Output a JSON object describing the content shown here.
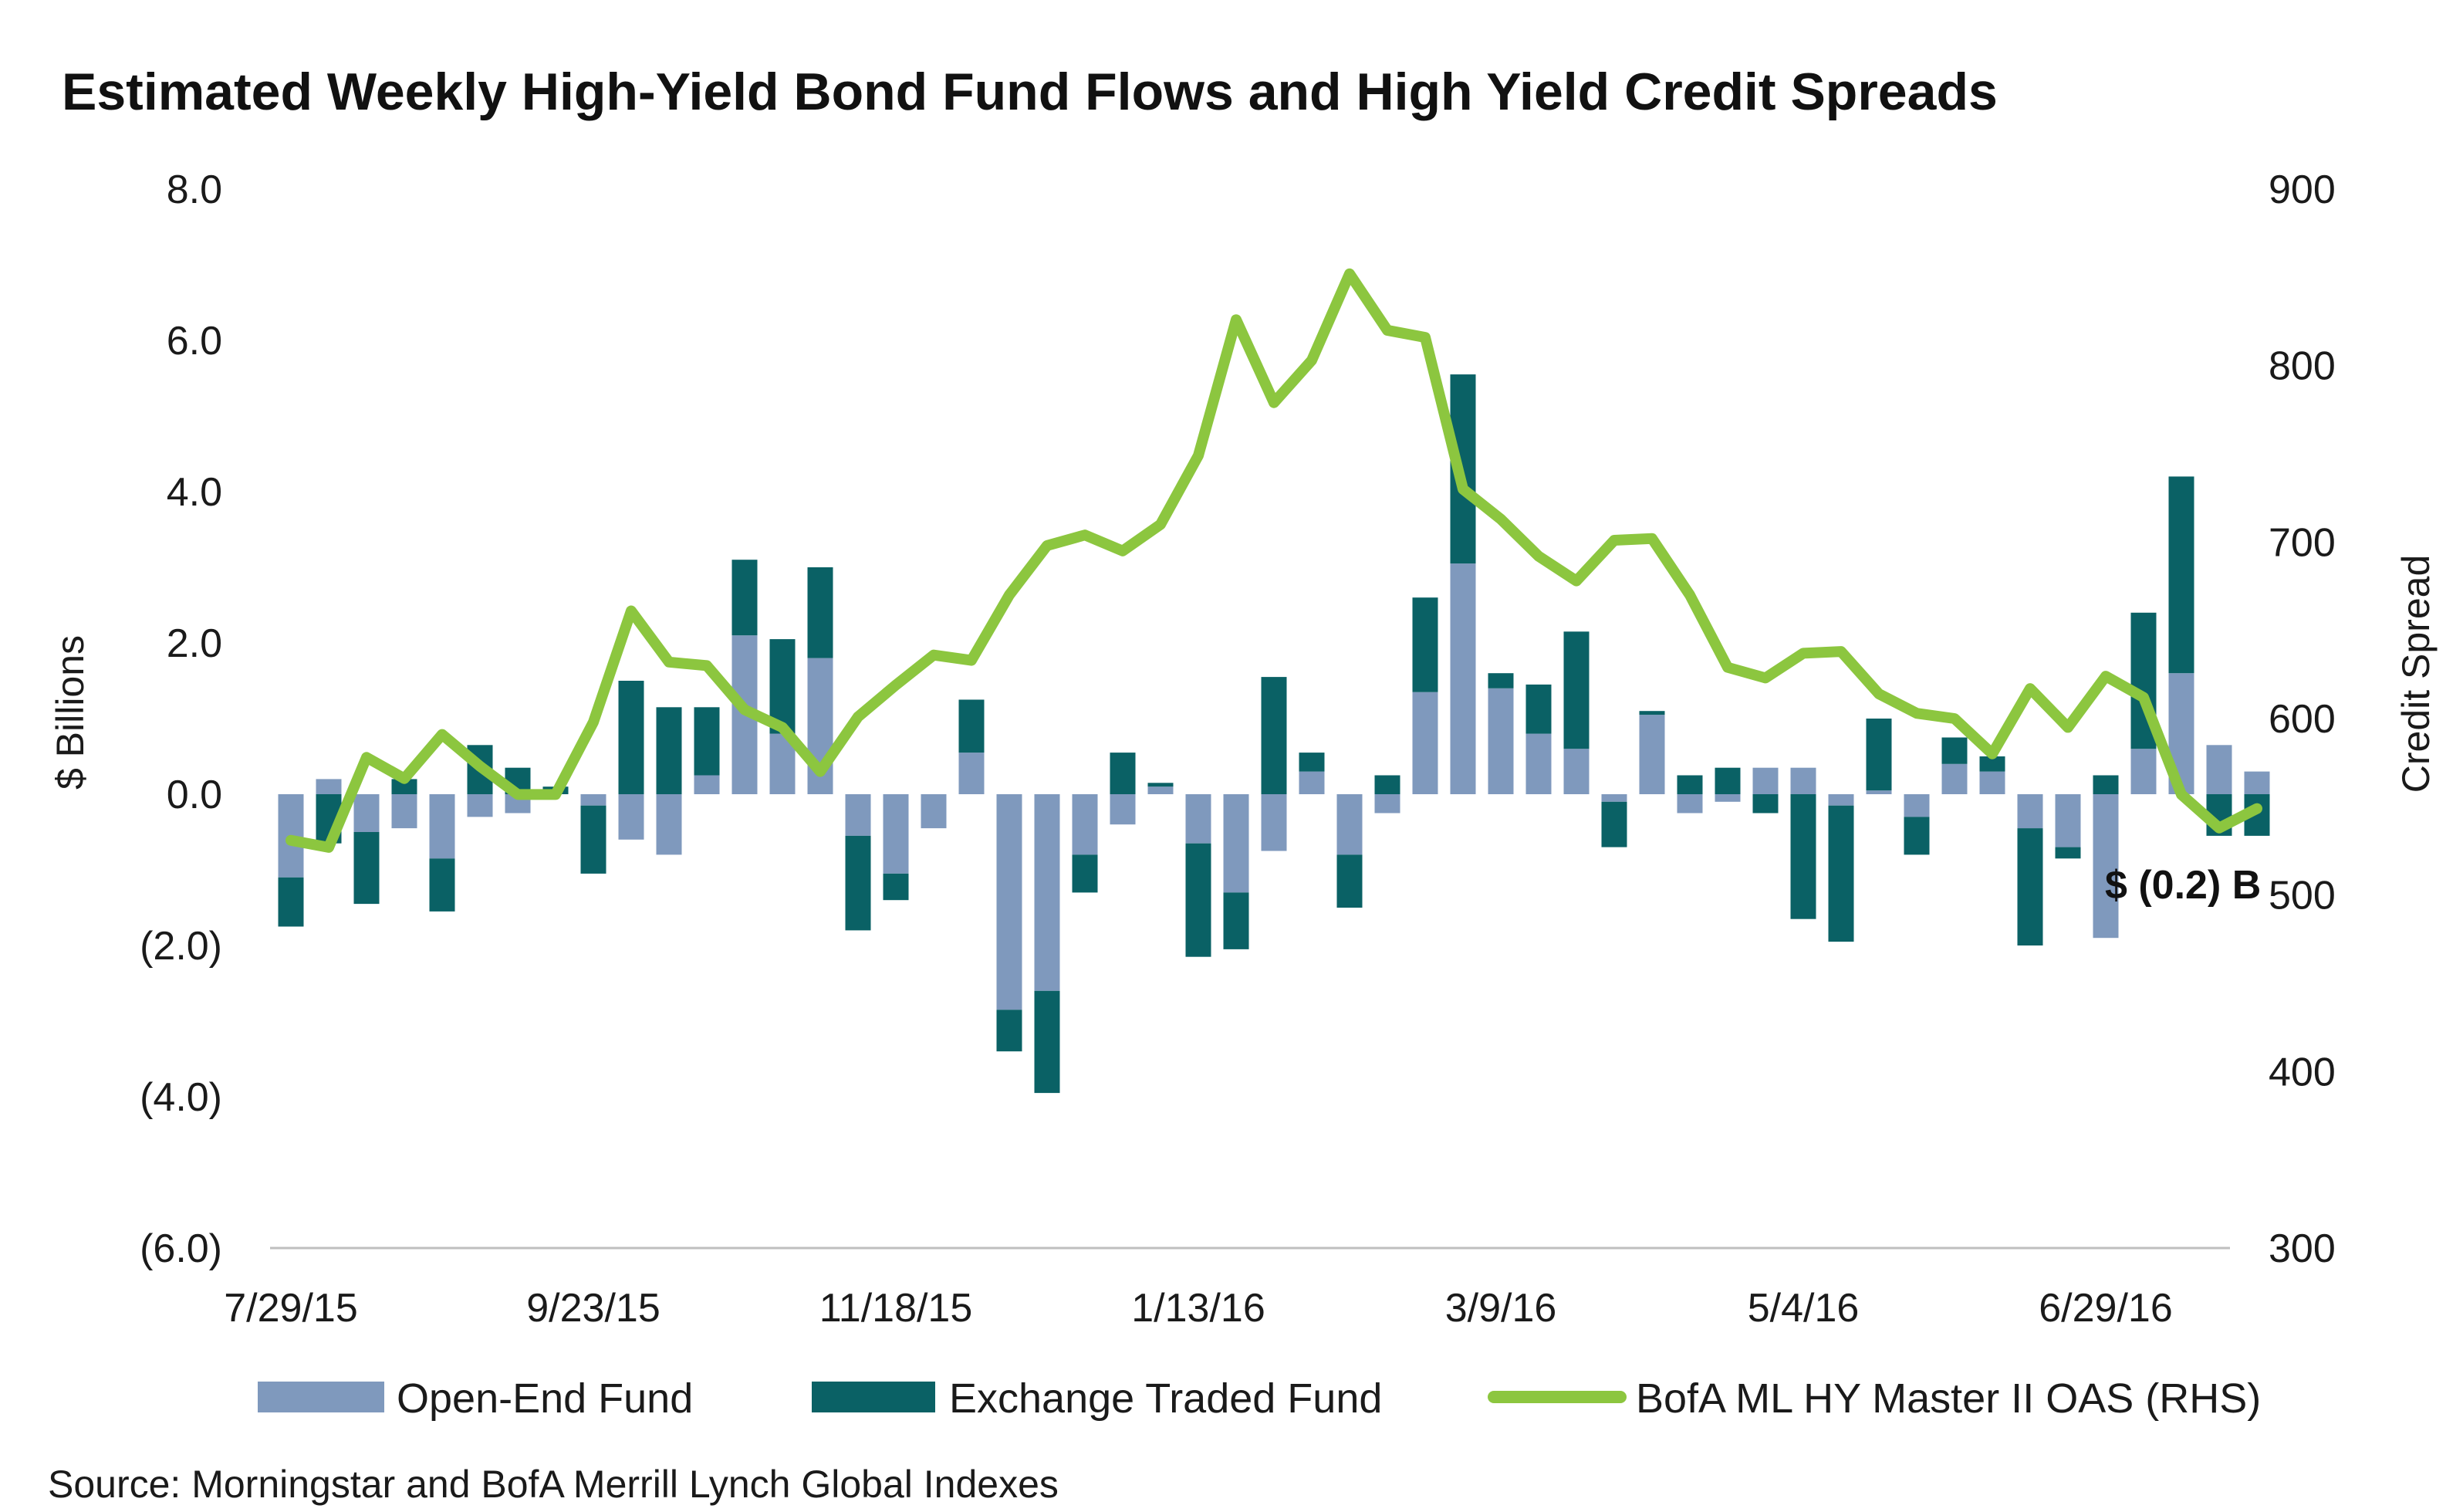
{
  "chart_data": {
    "type": "bar",
    "title": "Estimated Weekly High-Yield Bond Fund Flows and High Yield Credit Spreads",
    "ylabel": "$ Billions",
    "y2label": "Credit Spread",
    "ylim": [
      -6,
      8
    ],
    "y2lim": [
      300,
      900
    ],
    "yticks": [
      "8.0",
      "6.0",
      "4.0",
      "2.0",
      "0.0",
      "(2.0)",
      "(4.0)",
      "(6.0)"
    ],
    "y2ticks": [
      "900",
      "800",
      "700",
      "600",
      "500",
      "400",
      "300"
    ],
    "xtick_labels": [
      "7/29/15",
      "9/23/15",
      "11/18/15",
      "1/13/16",
      "3/9/16",
      "5/4/16",
      "6/29/16"
    ],
    "xtick_index": [
      0,
      8,
      16,
      24,
      32,
      40,
      48
    ],
    "grid": false,
    "legend_position": "bottom",
    "stacked": true,
    "x": [
      "7/29/15",
      "8/5/15",
      "8/12/15",
      "8/19/15",
      "8/26/15",
      "9/2/15",
      "9/9/15",
      "9/16/15",
      "9/23/15",
      "9/30/15",
      "10/7/15",
      "10/14/15",
      "10/21/15",
      "10/28/15",
      "11/4/15",
      "11/11/15",
      "11/18/15",
      "11/25/15",
      "12/2/15",
      "12/9/15",
      "12/16/15",
      "12/23/15",
      "12/30/15",
      "1/6/16",
      "1/13/16",
      "1/20/16",
      "1/27/16",
      "2/3/16",
      "2/10/16",
      "2/17/16",
      "2/24/16",
      "3/2/16",
      "3/9/16",
      "3/16/16",
      "3/23/16",
      "3/30/16",
      "4/6/16",
      "4/13/16",
      "4/20/16",
      "4/27/16",
      "5/4/16",
      "5/11/16",
      "5/18/16",
      "5/25/16",
      "6/1/16",
      "6/8/16",
      "6/15/16",
      "6/22/16",
      "6/29/16",
      "7/6/16",
      "7/13/16",
      "7/20/16",
      "7/27/16"
    ],
    "series": [
      {
        "name": "Open-End Fund",
        "color": "#7f99bd",
        "values": [
          -1.1,
          0.2,
          -0.5,
          -0.45,
          -0.85,
          -0.3,
          -0.25,
          0.0,
          -0.15,
          -0.6,
          -0.8,
          0.25,
          2.1,
          0.8,
          1.8,
          -0.55,
          -1.05,
          -0.45,
          0.55,
          -2.85,
          -2.6,
          -0.8,
          -0.4,
          0.1,
          -0.65,
          -1.3,
          -0.75,
          0.3,
          -0.8,
          -0.25,
          1.35,
          3.05,
          1.4,
          0.8,
          0.6,
          -0.1,
          1.05,
          -0.25,
          -0.1,
          0.35,
          0.35,
          -0.15,
          0.05,
          -0.3,
          0.4,
          0.3,
          -0.45,
          -0.7,
          -1.9,
          0.6,
          1.6,
          0.65,
          0.3
        ]
      },
      {
        "name": "Exchange Traded Fund",
        "color": "#0a6165",
        "values": [
          -0.65,
          -0.65,
          -0.95,
          0.2,
          -0.7,
          0.65,
          0.35,
          0.1,
          -0.9,
          1.5,
          1.15,
          0.9,
          1.0,
          1.25,
          1.2,
          -1.25,
          -0.35,
          0.0,
          0.7,
          -0.55,
          -1.35,
          -0.5,
          0.55,
          0.05,
          -1.5,
          -0.75,
          1.55,
          0.25,
          -0.7,
          0.25,
          1.25,
          2.5,
          0.2,
          0.65,
          1.55,
          -0.6,
          0.05,
          0.25,
          0.35,
          -0.25,
          -1.65,
          -1.8,
          0.95,
          -0.5,
          0.35,
          0.2,
          -1.55,
          -0.15,
          0.25,
          1.8,
          2.6,
          -0.55,
          -0.55
        ]
      },
      {
        "name": "BofA ML HY Master II OAS (RHS)",
        "color": "#8cc63f",
        "type": "line",
        "axis": "right",
        "values": [
          531,
          527,
          578,
          566,
          591,
          573,
          557,
          557,
          598,
          661,
          632,
          630,
          605,
          595,
          570,
          601,
          619,
          636,
          633,
          670,
          698,
          704,
          695,
          710,
          749,
          826,
          779,
          803,
          852,
          820,
          816,
          730,
          713,
          692,
          678,
          701,
          702,
          670,
          629,
          623,
          637,
          638,
          614,
          603,
          600,
          580,
          617,
          595,
          624,
          612,
          557,
          538,
          549
        ]
      }
    ],
    "annotations": [
      {
        "text": "$ (0.2) B"
      }
    ],
    "source": "Source: Morningstar and BofA Merrill Lynch Global Indexes"
  }
}
